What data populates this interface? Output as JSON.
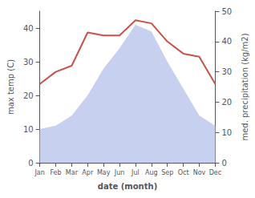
{
  "chart_data": {
    "type": "line",
    "xlabel": "date (month)",
    "ylabel": "max temp (C)",
    "y2label": "med. precipitation (kg/m2)",
    "categories": [
      "Jan",
      "Feb",
      "Mar",
      "Apr",
      "May",
      "Jun",
      "Jul",
      "Aug",
      "Sep",
      "Oct",
      "Nov",
      "Dec"
    ],
    "series": [
      {
        "type": "area",
        "color": "#c8d0f0",
        "values": [
          10,
          11,
          14,
          20,
          28,
          34,
          41,
          39,
          30,
          22,
          14,
          11
        ]
      },
      {
        "type": "line",
        "color": "#c8524a",
        "axis": "y2",
        "values": [
          26,
          30,
          32,
          43,
          42,
          42,
          47,
          46,
          40,
          36,
          35,
          26
        ]
      }
    ],
    "ylim": [
      0,
      45
    ],
    "yticks": [
      0,
      10,
      20,
      30,
      40
    ],
    "y2lim": [
      0,
      50
    ],
    "y2ticks": [
      0,
      10,
      20,
      30,
      40,
      50
    ],
    "grid": false
  }
}
